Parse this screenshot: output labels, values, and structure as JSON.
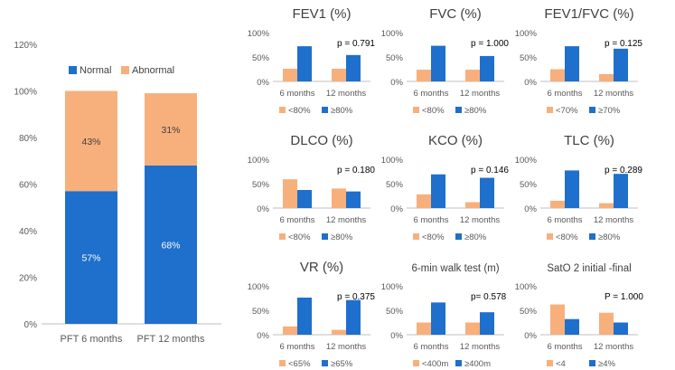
{
  "colors": {
    "normal": "#1F6FCC",
    "abnormal": "#F7B07C",
    "axis": "#BFBFBF",
    "tick_text": "#595959",
    "title_text": "#404040",
    "label_white": "#FFFFFF",
    "pvalue_text": "#000000"
  },
  "chart_data": [
    {
      "type": "bar",
      "stacked": true,
      "title": "",
      "categories": [
        "PFT 6 months",
        "PFT 12 months"
      ],
      "series": [
        {
          "name": "Normal",
          "color_key": "normal",
          "values": [
            57,
            68
          ],
          "labels": [
            "57%",
            "68%"
          ]
        },
        {
          "name": "Abnormal",
          "color_key": "abnormal",
          "values": [
            43,
            31
          ],
          "labels": [
            "43%",
            "31%"
          ]
        }
      ],
      "ylim": [
        0,
        120
      ],
      "yticks": [
        0,
        20,
        40,
        60,
        80,
        100,
        120
      ],
      "ytick_labels": [
        "0%",
        "20%",
        "40%",
        "60%",
        "80%",
        "100%",
        "120%"
      ],
      "legend": [
        "Normal",
        "Abnormal"
      ],
      "legend_position": "top"
    },
    {
      "type": "bar",
      "title": "FEV1 (%)",
      "categories": [
        "6 months",
        "12 months"
      ],
      "series": [
        {
          "name": "<80%",
          "color_key": "abnormal",
          "values": [
            26,
            26
          ]
        },
        {
          "name": "≥80%",
          "color_key": "normal",
          "values": [
            72,
            54
          ]
        }
      ],
      "ylim": [
        0,
        100
      ],
      "ytick_labels": [
        "0%",
        "50%",
        "100%"
      ],
      "annotation": "p = 0.791"
    },
    {
      "type": "bar",
      "title": "FVC (%)",
      "categories": [
        "6 months",
        "12 months"
      ],
      "series": [
        {
          "name": "<80%",
          "color_key": "abnormal",
          "values": [
            24,
            24
          ]
        },
        {
          "name": "≥80%",
          "color_key": "normal",
          "values": [
            73,
            52
          ]
        }
      ],
      "ylim": [
        0,
        100
      ],
      "ytick_labels": [
        "0%",
        "50%",
        "100%"
      ],
      "annotation": "p = 1.000"
    },
    {
      "type": "bar",
      "title": "FEV1/FVC (%)",
      "categories": [
        "6 months",
        "12 months"
      ],
      "series": [
        {
          "name": "<70%",
          "color_key": "abnormal",
          "values": [
            25,
            15
          ]
        },
        {
          "name": "≥70%",
          "color_key": "normal",
          "values": [
            72,
            67
          ]
        }
      ],
      "ylim": [
        0,
        100
      ],
      "ytick_labels": [
        "0%",
        "50%",
        "100%"
      ],
      "annotation": "p = 0.125"
    },
    {
      "type": "bar",
      "title": "DLCO (%)",
      "categories": [
        "6 months",
        "12 months"
      ],
      "series": [
        {
          "name": "<80%",
          "color_key": "abnormal",
          "values": [
            59,
            40
          ]
        },
        {
          "name": "≥80%",
          "color_key": "normal",
          "values": [
            37,
            34
          ]
        }
      ],
      "ylim": [
        0,
        100
      ],
      "ytick_labels": [
        "0%",
        "50%",
        "100%"
      ],
      "annotation": "p = 0.180"
    },
    {
      "type": "bar",
      "title": "KCO (%)",
      "categories": [
        "6 months",
        "12 months"
      ],
      "series": [
        {
          "name": "<80%",
          "color_key": "abnormal",
          "values": [
            28,
            12
          ]
        },
        {
          "name": "≥80%",
          "color_key": "normal",
          "values": [
            69,
            62
          ]
        }
      ],
      "ylim": [
        0,
        100
      ],
      "ytick_labels": [
        "0%",
        "50%",
        "100%"
      ],
      "annotation": "p = 0.146"
    },
    {
      "type": "bar",
      "title": "TLC (%)",
      "categories": [
        "6 months",
        "12 months"
      ],
      "series": [
        {
          "name": "<80%",
          "color_key": "abnormal",
          "values": [
            15,
            10
          ]
        },
        {
          "name": "≥80%",
          "color_key": "normal",
          "values": [
            77,
            70
          ]
        }
      ],
      "ylim": [
        0,
        100
      ],
      "ytick_labels": [
        "0%",
        "50%",
        "100%"
      ],
      "annotation": "p = 0.289"
    },
    {
      "type": "bar",
      "title": "VR (%)",
      "categories": [
        "6 months",
        "12 months"
      ],
      "series": [
        {
          "name": "<65%",
          "color_key": "abnormal",
          "values": [
            17,
            10
          ]
        },
        {
          "name": "≥65%",
          "color_key": "normal",
          "values": [
            76,
            71
          ]
        }
      ],
      "ylim": [
        0,
        100
      ],
      "ytick_labels": [
        "0%",
        "50%",
        "100%"
      ],
      "annotation": "p = 0.375"
    },
    {
      "type": "bar",
      "title": "6-min  walk  test (m)",
      "categories": [
        "6 months",
        "12 months"
      ],
      "series": [
        {
          "name": "<400m",
          "color_key": "abnormal",
          "values": [
            25,
            25
          ]
        },
        {
          "name": "≥400m",
          "color_key": "normal",
          "values": [
            66,
            46
          ]
        }
      ],
      "ylim": [
        0,
        100
      ],
      "ytick_labels": [
        "0%",
        "50%",
        "100%"
      ],
      "annotation": "p= 0.578"
    },
    {
      "type": "bar",
      "title": "SatO 2 initial -final",
      "categories": [
        "6 months",
        "12 months"
      ],
      "series": [
        {
          "name": "<4",
          "color_key": "abnormal",
          "values": [
            62,
            45
          ]
        },
        {
          "name": "≥4%",
          "color_key": "normal",
          "values": [
            32,
            25
          ]
        }
      ],
      "ylim": [
        0,
        100
      ],
      "ytick_labels": [
        "0%",
        "50%",
        "100%"
      ],
      "annotation": "P = 1.000"
    }
  ]
}
